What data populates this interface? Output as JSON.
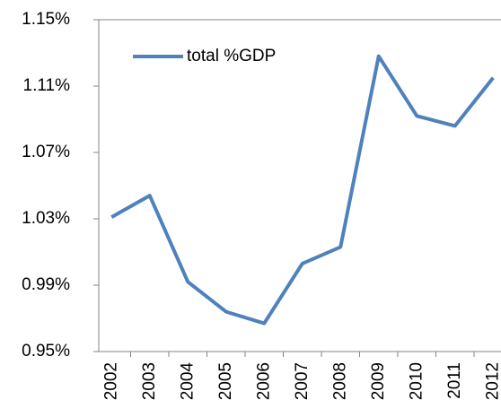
{
  "chart_data": {
    "type": "line",
    "categories": [
      "2002",
      "2003",
      "2004",
      "2005",
      "2006",
      "2007",
      "2008",
      "2009",
      "2010",
      "2011",
      "2012"
    ],
    "series": [
      {
        "name": "total %GDP",
        "color": "#4f81bd",
        "values": [
          1.031,
          1.044,
          0.992,
          0.974,
          0.967,
          1.003,
          1.013,
          1.128,
          1.092,
          1.086,
          1.115
        ]
      }
    ],
    "ylim": [
      0.95,
      1.15
    ],
    "yticks": [
      {
        "value": 0.95,
        "label": "0.95%"
      },
      {
        "value": 0.99,
        "label": "0.99%"
      },
      {
        "value": 1.03,
        "label": "1.03%"
      },
      {
        "value": 1.07,
        "label": "1.07%"
      },
      {
        "value": 1.11,
        "label": "1.11%"
      },
      {
        "value": 1.15,
        "label": "1.15%"
      }
    ],
    "legend": "top-left"
  }
}
